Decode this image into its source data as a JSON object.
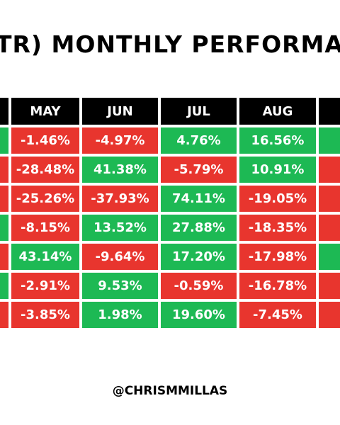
{
  "title": "TR) MONTHLY PERFORMA",
  "footer": "@CHRISMMILLAS",
  "colors": {
    "positive": "#1db954",
    "negative": "#e8352e",
    "header": "#000000"
  },
  "chart_data": {
    "type": "table",
    "title": "TR) MONTHLY PERFORMA",
    "columns": [
      "MAY",
      "JUN",
      "JUL",
      "AUG"
    ],
    "rows": [
      [
        "-1.46%",
        "-4.97%",
        "4.76%",
        "16.56%"
      ],
      [
        "-28.48%",
        "41.38%",
        "-5.79%",
        "10.91%"
      ],
      [
        "-25.26%",
        "-37.93%",
        "74.11%",
        "-19.05%"
      ],
      [
        "-8.15%",
        "13.52%",
        "27.88%",
        "-18.35%"
      ],
      [
        "43.14%",
        "-9.64%",
        "17.20%",
        "-17.98%"
      ],
      [
        "-2.91%",
        "9.53%",
        "-0.59%",
        "-16.78%"
      ],
      [
        "-3.85%",
        "1.98%",
        "19.60%",
        "-7.45%"
      ]
    ],
    "partial_left_column": [
      "positive",
      "negative",
      "negative",
      "positive",
      "negative",
      "positive",
      "negative"
    ],
    "partial_right_column": [
      "positive",
      "negative",
      "negative",
      "negative",
      "positive",
      "negative",
      "negative"
    ]
  }
}
